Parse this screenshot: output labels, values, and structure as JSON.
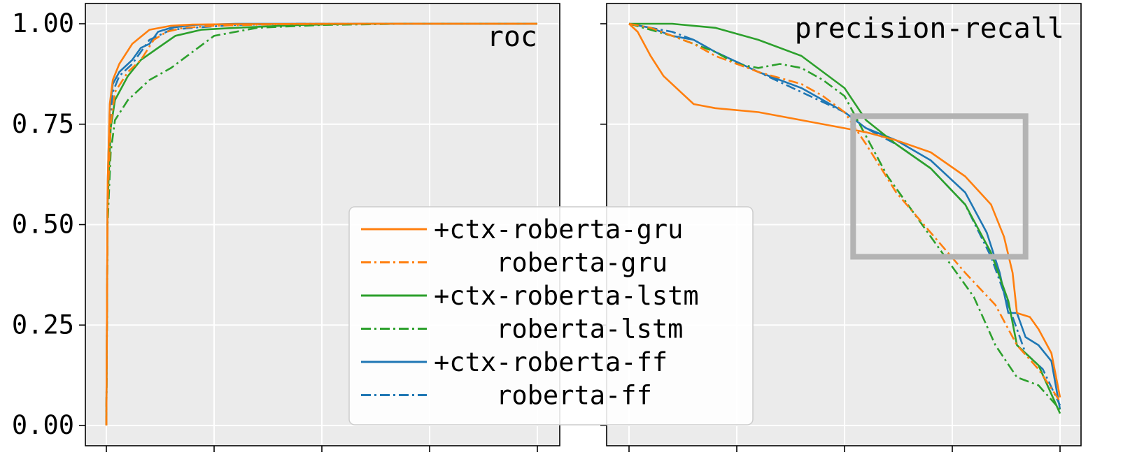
{
  "colors": {
    "orange": "#ff7f0e",
    "green": "#2ca02c",
    "blue": "#1f77b4",
    "panel_bg": "#ebebeb",
    "grid": "#ffffff",
    "zoom_box": "#b3b3b3"
  },
  "legend": {
    "placement": "center",
    "entries": [
      {
        "label": "+ctx-roberta-gru",
        "color": "#ff7f0e",
        "style": "solid"
      },
      {
        "label": "    roberta-gru",
        "color": "#ff7f0e",
        "style": "dashdot"
      },
      {
        "label": "+ctx-roberta-lstm",
        "color": "#2ca02c",
        "style": "solid"
      },
      {
        "label": "    roberta-lstm",
        "color": "#2ca02c",
        "style": "dashdot"
      },
      {
        "label": "+ctx-roberta-ff",
        "color": "#1f77b4",
        "style": "solid"
      },
      {
        "label": "    roberta-ff",
        "color": "#1f77b4",
        "style": "dashdot"
      }
    ]
  },
  "chart_data": [
    {
      "type": "line",
      "title": "roc",
      "xlabel": "",
      "ylabel": "",
      "xlim": [
        0,
        1
      ],
      "ylim": [
        0,
        1
      ],
      "yticks": [
        "0.00",
        "0.25",
        "0.50",
        "0.75",
        "1.00"
      ],
      "grid": true,
      "series": [
        {
          "name": "+ctx-roberta-gru",
          "color": "#ff7f0e",
          "style": "solid",
          "x": [
            0,
            0.003,
            0.008,
            0.015,
            0.03,
            0.06,
            0.1,
            0.15,
            0.2,
            0.3,
            0.5,
            0.7,
            1.0
          ],
          "y": [
            0,
            0.6,
            0.8,
            0.86,
            0.9,
            0.95,
            0.985,
            0.995,
            0.998,
            0.999,
            1.0,
            1.0,
            1.0
          ]
        },
        {
          "name": "roberta-gru",
          "color": "#ff7f0e",
          "style": "dashdot",
          "x": [
            0,
            0.003,
            0.01,
            0.02,
            0.05,
            0.08,
            0.11,
            0.14,
            0.18,
            0.25,
            0.4,
            0.6,
            1.0
          ],
          "y": [
            0,
            0.55,
            0.75,
            0.83,
            0.88,
            0.91,
            0.96,
            0.98,
            0.99,
            0.995,
            0.999,
            1.0,
            1.0
          ]
        },
        {
          "name": "+ctx-roberta-lstm",
          "color": "#2ca02c",
          "style": "solid",
          "x": [
            0,
            0.003,
            0.01,
            0.02,
            0.05,
            0.08,
            0.12,
            0.16,
            0.22,
            0.3,
            0.45,
            0.6,
            1.0
          ],
          "y": [
            0,
            0.55,
            0.74,
            0.81,
            0.87,
            0.91,
            0.94,
            0.97,
            0.985,
            0.99,
            0.997,
            1.0,
            1.0
          ]
        },
        {
          "name": "roberta-lstm",
          "color": "#2ca02c",
          "style": "dashdot",
          "x": [
            0,
            0.003,
            0.01,
            0.02,
            0.05,
            0.1,
            0.15,
            0.2,
            0.25,
            0.35,
            0.5,
            0.7,
            1.0
          ],
          "y": [
            0,
            0.5,
            0.68,
            0.76,
            0.81,
            0.86,
            0.89,
            0.93,
            0.97,
            0.99,
            0.997,
            1.0,
            1.0
          ]
        },
        {
          "name": "+ctx-roberta-ff",
          "color": "#1f77b4",
          "style": "solid",
          "x": [
            0,
            0.003,
            0.008,
            0.015,
            0.03,
            0.06,
            0.08,
            0.1,
            0.12,
            0.15,
            0.2,
            0.3,
            0.5,
            1.0
          ],
          "y": [
            0,
            0.6,
            0.79,
            0.85,
            0.88,
            0.91,
            0.94,
            0.95,
            0.98,
            0.99,
            0.997,
            1.0,
            1.0,
            1.0
          ]
        },
        {
          "name": "roberta-ff",
          "color": "#1f77b4",
          "style": "dashdot",
          "x": [
            0,
            0.003,
            0.008,
            0.015,
            0.03,
            0.06,
            0.1,
            0.15,
            0.2,
            0.3,
            0.45,
            0.6,
            1.0
          ],
          "y": [
            0,
            0.58,
            0.76,
            0.83,
            0.87,
            0.9,
            0.96,
            0.985,
            0.99,
            0.997,
            1.0,
            1.0,
            1.0
          ]
        }
      ]
    },
    {
      "type": "line",
      "title": "precision-recall",
      "xlabel": "",
      "ylabel": "",
      "xlim": [
        0,
        1
      ],
      "ylim": [
        0,
        1
      ],
      "grid": true,
      "zoom_box": {
        "x": [
          0.52,
          0.92
        ],
        "y": [
          0.42,
          0.77
        ]
      },
      "series": [
        {
          "name": "+ctx-roberta-gru",
          "color": "#ff7f0e",
          "style": "solid",
          "x": [
            0,
            0.02,
            0.05,
            0.08,
            0.12,
            0.15,
            0.2,
            0.3,
            0.4,
            0.5,
            0.55,
            0.62,
            0.7,
            0.78,
            0.84,
            0.87,
            0.89,
            0.9,
            0.93,
            0.95,
            0.98,
            1.0
          ],
          "y": [
            1.0,
            0.98,
            0.92,
            0.87,
            0.83,
            0.8,
            0.79,
            0.78,
            0.76,
            0.74,
            0.73,
            0.71,
            0.68,
            0.62,
            0.55,
            0.47,
            0.38,
            0.28,
            0.27,
            0.24,
            0.18,
            0.07
          ]
        },
        {
          "name": "roberta-gru",
          "color": "#ff7f0e",
          "style": "dashdot",
          "x": [
            0,
            0.05,
            0.1,
            0.15,
            0.2,
            0.3,
            0.4,
            0.45,
            0.5,
            0.55,
            0.62,
            0.7,
            0.78,
            0.85,
            0.9,
            0.95,
            1.0
          ],
          "y": [
            1.0,
            0.99,
            0.97,
            0.95,
            0.92,
            0.88,
            0.85,
            0.82,
            0.78,
            0.7,
            0.58,
            0.48,
            0.38,
            0.3,
            0.2,
            0.14,
            0.06
          ]
        },
        {
          "name": "+ctx-roberta-lstm",
          "color": "#2ca02c",
          "style": "solid",
          "x": [
            0,
            0.1,
            0.15,
            0.2,
            0.3,
            0.4,
            0.45,
            0.5,
            0.55,
            0.62,
            0.7,
            0.78,
            0.84,
            0.88,
            0.9,
            0.95,
            1.0
          ],
          "y": [
            1.0,
            1.0,
            0.995,
            0.99,
            0.96,
            0.92,
            0.88,
            0.84,
            0.76,
            0.7,
            0.64,
            0.55,
            0.43,
            0.31,
            0.2,
            0.15,
            0.03
          ]
        },
        {
          "name": "roberta-lstm",
          "color": "#2ca02c",
          "style": "dashdot",
          "x": [
            0,
            0.1,
            0.2,
            0.25,
            0.3,
            0.35,
            0.4,
            0.45,
            0.5,
            0.55,
            0.6,
            0.7,
            0.8,
            0.85,
            0.9,
            0.95,
            1.0
          ],
          "y": [
            1.0,
            0.97,
            0.93,
            0.9,
            0.89,
            0.9,
            0.89,
            0.86,
            0.82,
            0.72,
            0.62,
            0.47,
            0.32,
            0.2,
            0.12,
            0.1,
            0.04
          ]
        },
        {
          "name": "+ctx-roberta-ff",
          "color": "#1f77b4",
          "style": "solid",
          "x": [
            0,
            0.05,
            0.1,
            0.15,
            0.2,
            0.3,
            0.4,
            0.5,
            0.55,
            0.62,
            0.7,
            0.78,
            0.83,
            0.86,
            0.88,
            0.9,
            0.92,
            0.95,
            0.98,
            1.0
          ],
          "y": [
            1.0,
            0.99,
            0.97,
            0.96,
            0.93,
            0.88,
            0.84,
            0.78,
            0.74,
            0.71,
            0.66,
            0.58,
            0.48,
            0.38,
            0.28,
            0.28,
            0.22,
            0.2,
            0.16,
            0.04
          ]
        },
        {
          "name": "roberta-ff",
          "color": "#1f77b4",
          "style": "dashdot",
          "x": [
            0,
            0.05,
            0.1,
            0.15,
            0.2,
            0.3,
            0.4,
            0.5,
            0.55,
            0.62,
            0.7,
            0.78,
            0.84,
            0.88,
            0.92,
            0.96,
            1.0
          ],
          "y": [
            1.0,
            0.99,
            0.98,
            0.96,
            0.93,
            0.88,
            0.83,
            0.78,
            0.74,
            0.7,
            0.64,
            0.55,
            0.42,
            0.3,
            0.18,
            0.14,
            0.05
          ]
        }
      ]
    }
  ]
}
